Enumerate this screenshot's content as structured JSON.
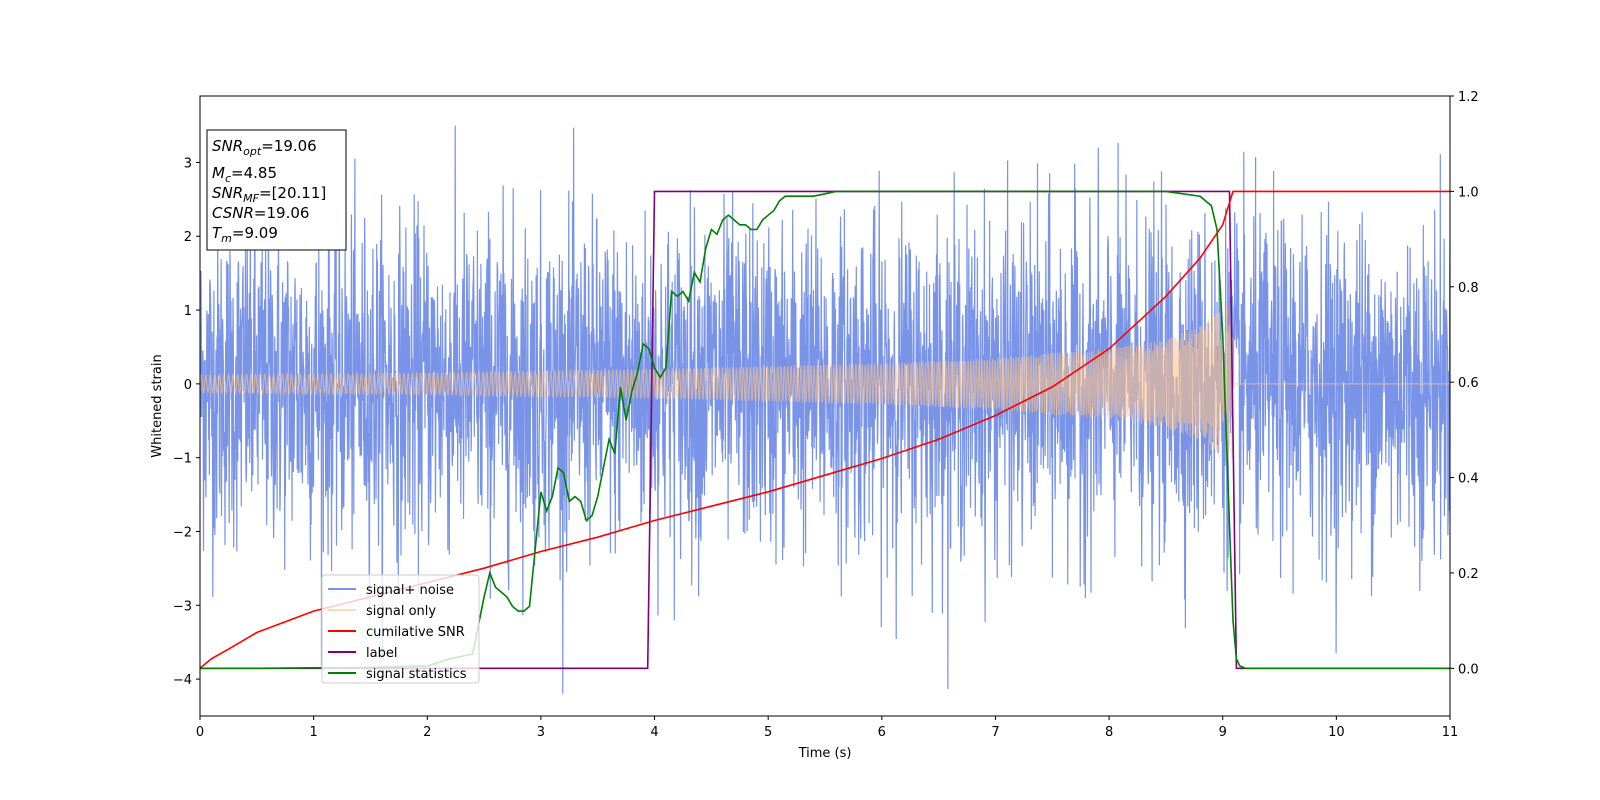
{
  "chart_data": {
    "type": "line",
    "title": "",
    "xlabel": "Time (s)",
    "ylabel": "Whitened strain",
    "xlim": [
      0,
      11
    ],
    "ylim": [
      -4.5,
      3.9
    ],
    "y2lim": [
      -0.1,
      1.2
    ],
    "x_ticks": [
      "0",
      "1",
      "2",
      "3",
      "4",
      "5",
      "6",
      "7",
      "8",
      "9",
      "10",
      "11"
    ],
    "y_ticks": [
      "−4",
      "−3",
      "−2",
      "−1",
      "0",
      "1",
      "2",
      "3"
    ],
    "y2_ticks": [
      "0.0",
      "0.2",
      "0.4",
      "0.6",
      "0.8",
      "1.0",
      "1.2"
    ],
    "grid": false,
    "legend_position": "lower-left",
    "annotation": {
      "snr_opt": {
        "sym": "SNR",
        "sub": "opt",
        "val": "=19.06"
      },
      "mc": {
        "sym": "M",
        "sub": "c",
        "val": "=4.85"
      },
      "snr_mf": {
        "sym": "SNR",
        "sub": "MF",
        "val": "=[20.11]"
      },
      "csnr": {
        "sym": "CSNR",
        "val": "=19.06"
      },
      "tm": {
        "sym": "T",
        "sub": "m",
        "val": "=9.09"
      }
    },
    "series": [
      {
        "name": "signal+ noise",
        "axis": "left",
        "color": "#7893e8",
        "kind": "noise",
        "x_range": [
          0,
          11
        ],
        "y_envelope": [
          -2.0,
          2.0
        ],
        "y_extremes": [
          -4.2,
          3.5
        ]
      },
      {
        "name": "signal only",
        "axis": "left",
        "color": "#fdc38a",
        "kind": "chirp",
        "x_range": [
          0,
          9.09
        ],
        "amplitude_points": [
          [
            0,
            0.12
          ],
          [
            2,
            0.15
          ],
          [
            4,
            0.2
          ],
          [
            6,
            0.28
          ],
          [
            7,
            0.35
          ],
          [
            8,
            0.48
          ],
          [
            8.5,
            0.6
          ],
          [
            8.8,
            0.78
          ],
          [
            9.0,
            1.05
          ],
          [
            9.09,
            1.1
          ]
        ]
      },
      {
        "name": "cumilative SNR",
        "axis": "right",
        "color": "#ff0000",
        "x": [
          0.0,
          0.1,
          0.25,
          0.5,
          1.0,
          1.5,
          2.0,
          2.5,
          3.0,
          3.5,
          4.0,
          4.5,
          5.0,
          5.5,
          6.0,
          6.5,
          7.0,
          7.5,
          8.0,
          8.5,
          8.8,
          9.0,
          9.09,
          9.1,
          11.0
        ],
        "y": [
          0.0,
          0.02,
          0.04,
          0.075,
          0.12,
          0.15,
          0.18,
          0.21,
          0.245,
          0.275,
          0.31,
          0.34,
          0.37,
          0.405,
          0.44,
          0.48,
          0.53,
          0.59,
          0.67,
          0.78,
          0.86,
          0.93,
          1.0,
          1.0,
          1.0
        ]
      },
      {
        "name": "label",
        "axis": "right",
        "color": "#800080",
        "x": [
          0,
          3.94,
          4.0,
          9.06,
          9.12,
          11.0
        ],
        "y": [
          0,
          0,
          1,
          1,
          0,
          0
        ]
      },
      {
        "name": "signal statistics",
        "axis": "right",
        "color": "#007f00",
        "x": [
          0,
          0.5,
          1.0,
          1.5,
          2.0,
          2.2,
          2.4,
          2.5,
          2.55,
          2.6,
          2.65,
          2.7,
          2.75,
          2.8,
          2.85,
          2.9,
          2.95,
          3.0,
          3.05,
          3.1,
          3.15,
          3.2,
          3.25,
          3.3,
          3.35,
          3.4,
          3.45,
          3.5,
          3.55,
          3.6,
          3.65,
          3.7,
          3.75,
          3.8,
          3.85,
          3.9,
          3.95,
          4.0,
          4.05,
          4.1,
          4.15,
          4.2,
          4.25,
          4.3,
          4.35,
          4.4,
          4.45,
          4.5,
          4.55,
          4.6,
          4.65,
          4.7,
          4.75,
          4.8,
          4.85,
          4.9,
          4.95,
          5.0,
          5.05,
          5.1,
          5.15,
          5.2,
          5.25,
          5.3,
          5.4,
          5.5,
          5.6,
          5.7,
          5.8,
          6.0,
          6.5,
          7.0,
          7.5,
          8.0,
          8.5,
          8.8,
          8.9,
          8.95,
          9.0,
          9.03,
          9.06,
          9.09,
          9.12,
          9.15,
          9.2,
          9.5,
          10.0,
          11.0
        ],
        "y": [
          0,
          0,
          0.001,
          0.002,
          0.005,
          0.02,
          0.03,
          0.15,
          0.2,
          0.17,
          0.16,
          0.15,
          0.13,
          0.12,
          0.12,
          0.13,
          0.25,
          0.37,
          0.33,
          0.36,
          0.42,
          0.41,
          0.35,
          0.36,
          0.35,
          0.31,
          0.32,
          0.36,
          0.42,
          0.48,
          0.45,
          0.59,
          0.52,
          0.58,
          0.62,
          0.68,
          0.67,
          0.63,
          0.61,
          0.63,
          0.79,
          0.78,
          0.79,
          0.77,
          0.83,
          0.81,
          0.88,
          0.92,
          0.91,
          0.94,
          0.95,
          0.94,
          0.93,
          0.93,
          0.92,
          0.92,
          0.94,
          0.95,
          0.96,
          0.98,
          0.99,
          0.99,
          0.99,
          0.99,
          0.99,
          0.995,
          1.0,
          1.0,
          1.0,
          1.0,
          1.0,
          1.0,
          1.0,
          1.0,
          1.0,
          0.99,
          0.97,
          0.92,
          0.7,
          0.5,
          0.3,
          0.1,
          0.02,
          0.005,
          0.0,
          0.0,
          0.0,
          0.0
        ]
      }
    ]
  }
}
